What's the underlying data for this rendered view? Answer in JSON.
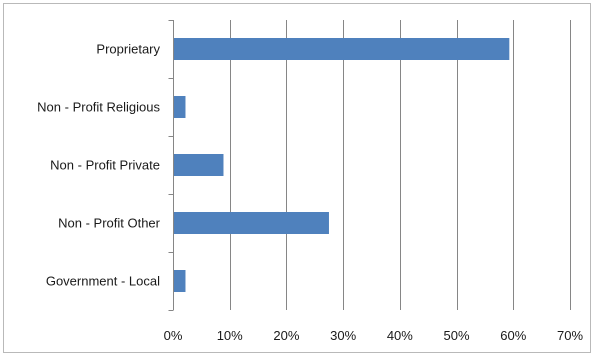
{
  "chart_data": {
    "type": "bar",
    "orientation": "horizontal",
    "title": "",
    "xlabel": "",
    "ylabel": "",
    "categories": [
      "Proprietary",
      "Non - Profit Religious",
      "Non - Profit Private",
      "Non - Profit Other",
      "Government - Local"
    ],
    "values": [
      59.3,
      2.2,
      8.9,
      27.5,
      2.2
    ],
    "xlim": [
      0,
      70
    ],
    "x_ticks": [
      "0%",
      "10%",
      "20%",
      "30%",
      "40%",
      "50%",
      "60%",
      "70%"
    ],
    "x_tick_values": [
      0,
      10,
      20,
      30,
      40,
      50,
      60,
      70
    ],
    "gridlines": "vertical",
    "legend": "none",
    "bar_color": "#4f81bd",
    "grid_color": "#868686"
  }
}
